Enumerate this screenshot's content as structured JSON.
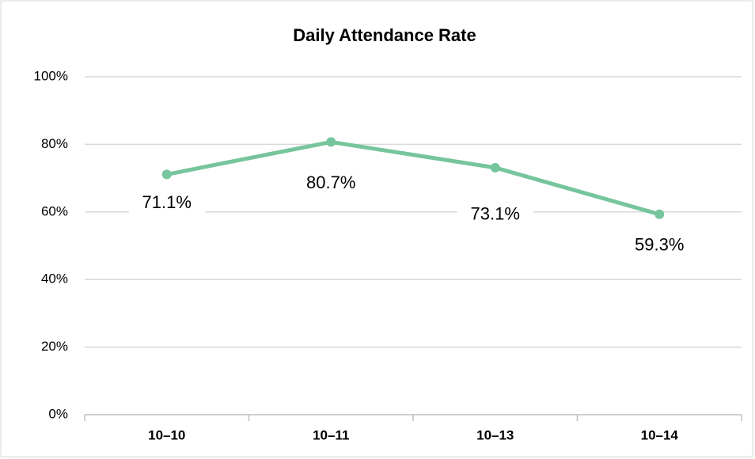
{
  "chart_data": {
    "type": "line",
    "title": "Daily Attendance Rate",
    "categories": [
      "10–10",
      "10–11",
      "10–13",
      "10–14"
    ],
    "series": [
      {
        "name": "Attendance Rate",
        "color": "#76c59c",
        "values": [
          71.1,
          80.7,
          73.1,
          59.3
        ],
        "value_labels": [
          "71.1%",
          "80.7%",
          "73.1%",
          "59.3%"
        ]
      }
    ],
    "ylim": [
      0,
      100
    ],
    "yticks": [
      {
        "value": 0,
        "label": "0%"
      },
      {
        "value": 20,
        "label": "20%"
      },
      {
        "value": 40,
        "label": "40%"
      },
      {
        "value": 60,
        "label": "60%"
      },
      {
        "value": 80,
        "label": "80%"
      },
      {
        "value": 100,
        "label": "100%"
      }
    ],
    "grid": true
  }
}
